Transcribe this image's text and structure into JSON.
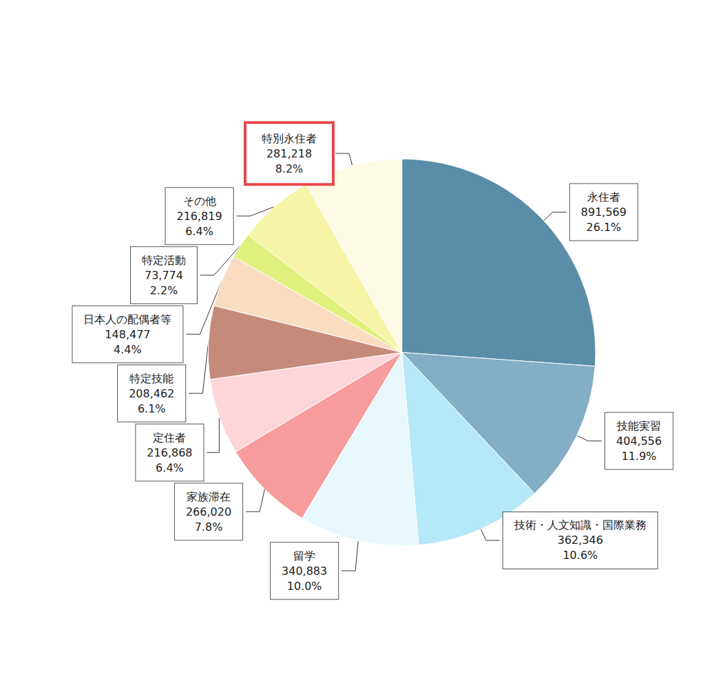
{
  "chart_data": {
    "type": "pie",
    "categories": [
      "永住者",
      "技能実習",
      "技術・人文知識・国際業務",
      "留学",
      "家族滞在",
      "定住者",
      "特定技能",
      "日本人の配偶者等",
      "特定活動",
      "その他",
      "特別永住者"
    ],
    "values": [
      891569,
      404556,
      362346,
      340883,
      266020,
      216868,
      208462,
      148477,
      73774,
      216819,
      281218
    ],
    "value_labels": [
      "891,569",
      "404,556",
      "362,346",
      "340,883",
      "266,020",
      "216,868",
      "208,462",
      "148,477",
      "73,774",
      "216,819",
      "281,218"
    ],
    "percentages": [
      26.1,
      11.9,
      10.6,
      10.0,
      7.8,
      6.4,
      6.1,
      4.4,
      2.2,
      6.4,
      8.2
    ],
    "percentage_labels": [
      "26.1%",
      "11.9%",
      "10.6%",
      "10.0%",
      "7.8%",
      "6.4%",
      "6.1%",
      "4.4%",
      "2.2%",
      "6.4%",
      "8.2%"
    ],
    "colors": [
      "#5a8ea8",
      "#84adc6",
      "#b5e8f8",
      "#e8f8fc",
      "#f79c9c",
      "#fdd6da",
      "#c48b7b",
      "#f9dbc0",
      "#e0f07c",
      "#f6f4a6",
      "#fdfbe6"
    ],
    "data_labels": true
  }
}
